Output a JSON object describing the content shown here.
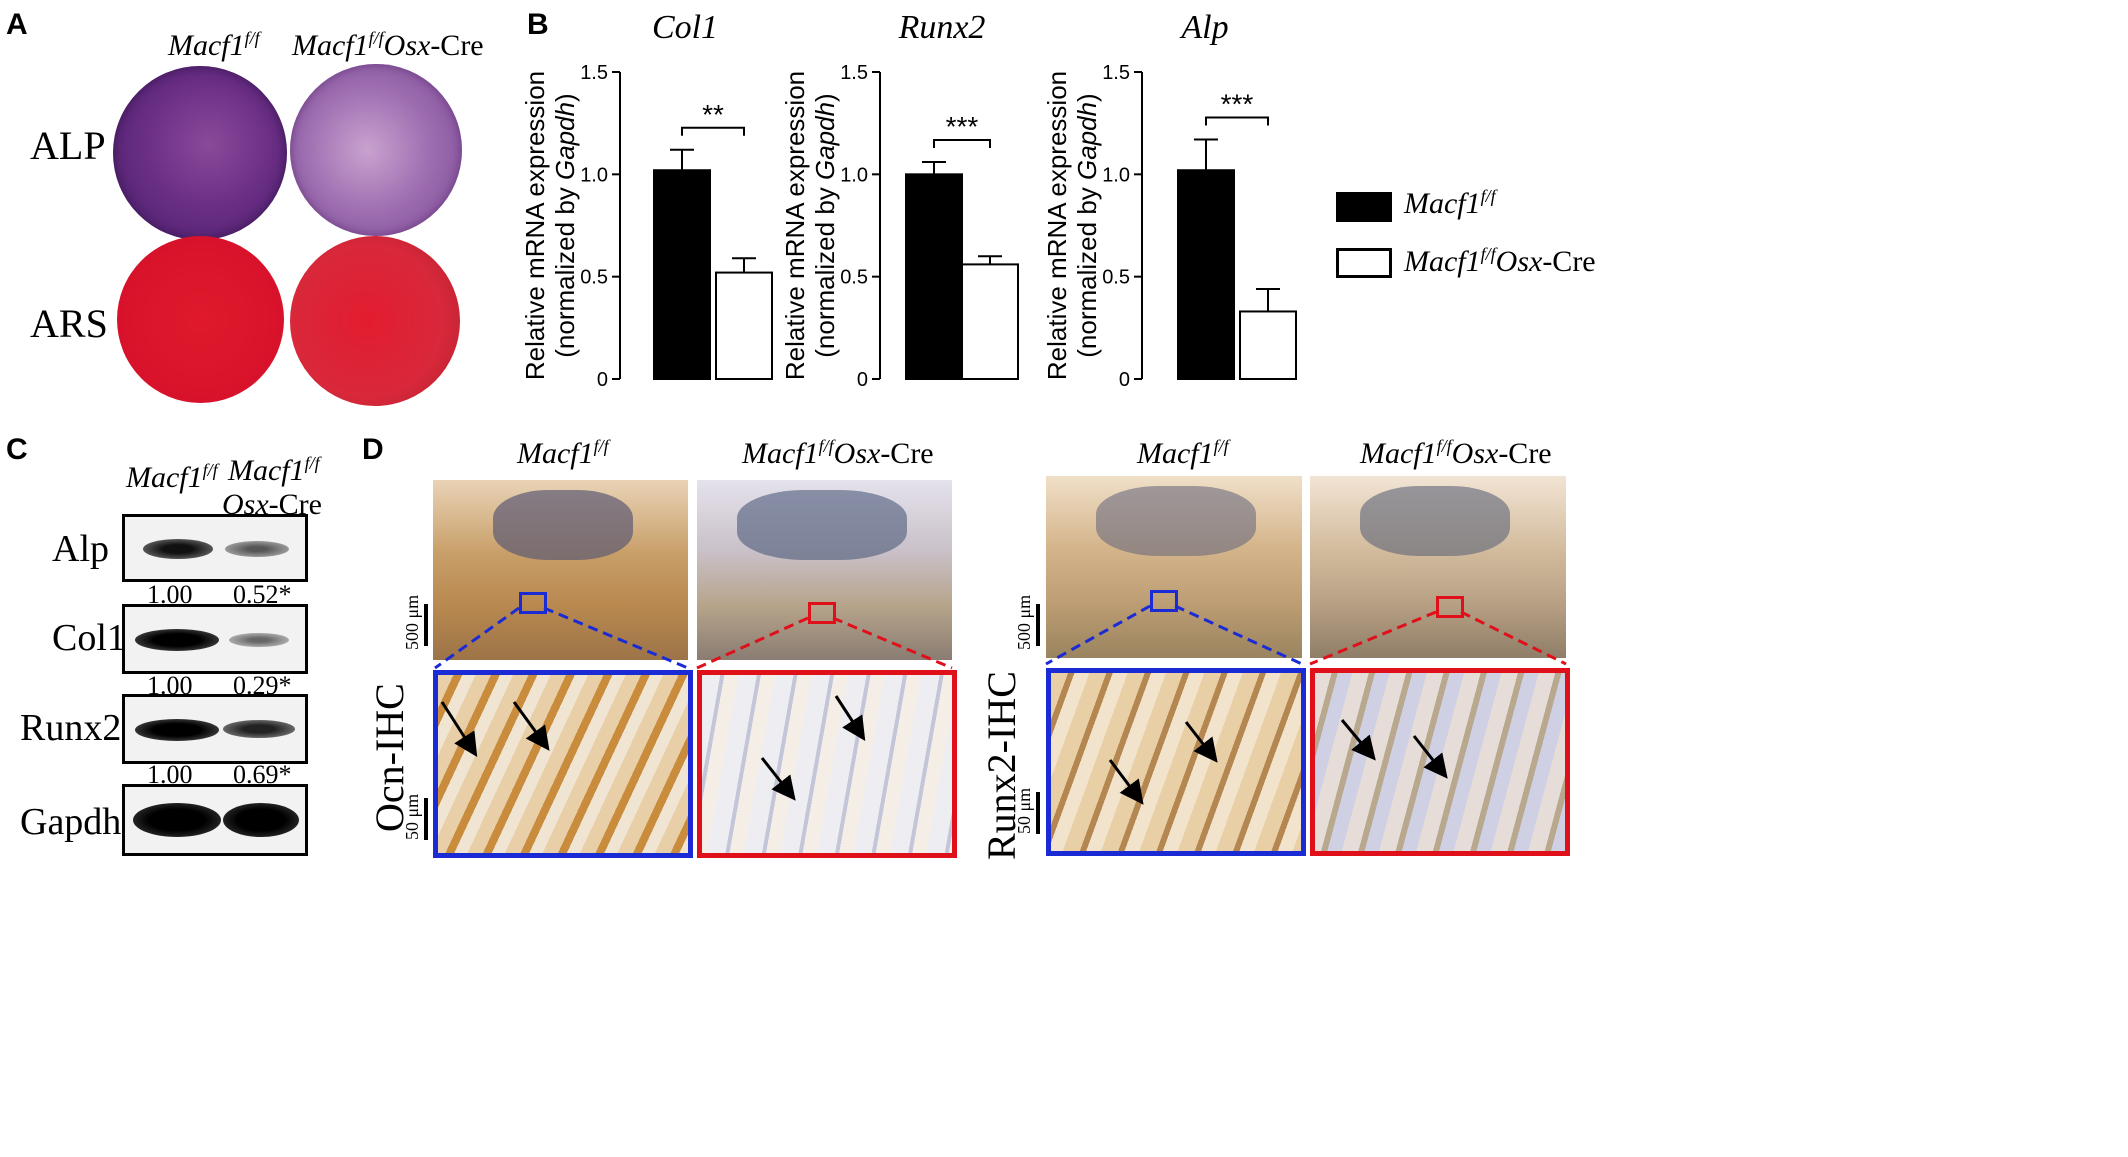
{
  "panels": {
    "a": "A",
    "b": "B",
    "c": "C",
    "d": "D"
  },
  "panel_a": {
    "col1": "Macf1",
    "col1_sup": "f/f",
    "col2": "Macf1",
    "col2_sup": "f/f",
    "col2_osx": "Osx",
    "col2_cre": "-Cre",
    "row1": "ALP",
    "row2": "ARS"
  },
  "chart_data": [
    {
      "type": "bar",
      "title": "Col1",
      "ylabel": "Relative mRNA expression (normalized by Gapdh)",
      "ylim": [
        0,
        1.5
      ],
      "yticks": [
        "0",
        "0.5",
        "1.0",
        "1.5"
      ],
      "series": [
        {
          "name": "Macf1f/f",
          "values": [
            1.02
          ],
          "error": [
            0.1
          ],
          "color": "#000000"
        },
        {
          "name": "Macf1f/fOsx-Cre",
          "values": [
            0.52
          ],
          "error": [
            0.07
          ],
          "color": "#ffffff"
        }
      ],
      "significance": "**"
    },
    {
      "type": "bar",
      "title": "Runx2",
      "ylabel": "Relative mRNA expression (normalized by Gapdh)",
      "ylim": [
        0,
        1.5
      ],
      "yticks": [
        "0",
        "0.5",
        "1.0",
        "1.5"
      ],
      "series": [
        {
          "name": "Macf1f/f",
          "values": [
            1.0
          ],
          "error": [
            0.06
          ],
          "color": "#000000"
        },
        {
          "name": "Macf1f/fOsx-Cre",
          "values": [
            0.56
          ],
          "error": [
            0.04
          ],
          "color": "#ffffff"
        }
      ],
      "significance": "***"
    },
    {
      "type": "bar",
      "title": "Alp",
      "ylabel": "Relative mRNA expression (normalized by Gapdh)",
      "ylim": [
        0,
        1.5
      ],
      "yticks": [
        "0",
        "0.5",
        "1.0",
        "1.5"
      ],
      "series": [
        {
          "name": "Macf1f/f",
          "values": [
            1.02
          ],
          "error": [
            0.15
          ],
          "color": "#000000"
        },
        {
          "name": "Macf1f/fOsx-Cre",
          "values": [
            0.33
          ],
          "error": [
            0.11
          ],
          "color": "#ffffff"
        }
      ],
      "significance": "***"
    }
  ],
  "chart_text": {
    "ylabel_line1": "Relative mRNA expression",
    "ylabel_line2_pre": "(normalized by ",
    "ylabel_line2_it": "Gapdh",
    "ylabel_line2_post": ")"
  },
  "legend": [
    {
      "name": "Macf1",
      "sup": "f/f",
      "osx": "",
      "cre": "",
      "fill": "#000000"
    },
    {
      "name": "Macf1",
      "sup": "f/f",
      "osx": "Osx",
      "cre": "-Cre",
      "fill": "#ffffff"
    }
  ],
  "panel_c": {
    "col1": "Macf1",
    "col1_sup": "f/f",
    "col2_l1": "Macf1",
    "col2_sup": "f/f",
    "col2_osx": "Osx",
    "col2_cre": "-Cre",
    "blots": [
      {
        "label": "Alp",
        "q1": "1.00",
        "q2": "0.52*",
        "ratio": 0.52
      },
      {
        "label": "Col1",
        "q1": "1.00",
        "q2": "0.29*",
        "ratio": 0.29
      },
      {
        "label": "Runx2",
        "q1": "1.00",
        "q2": "0.69*",
        "ratio": 0.69
      },
      {
        "label": "Gapdh",
        "q1": "",
        "q2": "",
        "ratio": 1.0
      }
    ]
  },
  "panel_d": {
    "hdr1": "Macf1",
    "hdr1_sup": "f/f",
    "hdr2": "Macf1",
    "hdr2_sup": "f/f",
    "hdr2_osx": "Osx",
    "hdr2_cre": "-Cre",
    "hdr3": "Macf1",
    "hdr3_sup": "f/f",
    "hdr4": "Macf1",
    "hdr4_sup": "f/f",
    "hdr4_osx": "Osx",
    "hdr4_cre": "-Cre",
    "left_label": "Ocn-IHC",
    "right_label": "Runx2-IHC",
    "scale_low": "500 μm",
    "scale_high": "50 μm",
    "blue": "#1a2bd6",
    "red": "#e0101a"
  }
}
